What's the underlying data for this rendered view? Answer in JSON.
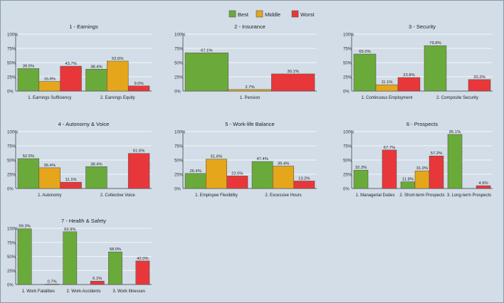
{
  "legend": [
    {
      "name": "Best",
      "color": "#6aaa3a"
    },
    {
      "name": "Middle",
      "color": "#e5a61b"
    },
    {
      "name": "Worst",
      "color": "#e8373a"
    }
  ],
  "colors": {
    "background": "#d2dde7",
    "gridline": "#ffffff",
    "frame": "#8a98a6"
  },
  "chart_data": [
    {
      "type": "bar",
      "title": "1 - Earnings",
      "categories": [
        "1. Earnings Sufficiency",
        "2. Earnings Equity"
      ],
      "series": [
        {
          "name": "Best",
          "values": [
            39.5,
            38.4
          ],
          "labels": [
            "39.5%",
            "38.4%"
          ]
        },
        {
          "name": "Middle",
          "values": [
            16.8,
            52.6
          ],
          "labels": [
            "16.8%",
            "52.6%"
          ]
        },
        {
          "name": "Worst",
          "values": [
            43.7,
            9.0
          ],
          "labels": [
            "43.7%",
            "9.0%"
          ]
        }
      ],
      "yticks": [
        "0%",
        "25%",
        "50%",
        "75%",
        "100%"
      ],
      "ylim": [
        0,
        100
      ]
    },
    {
      "type": "bar",
      "title": "2 - Insurance",
      "categories": [
        "1. Pension"
      ],
      "series": [
        {
          "name": "Best",
          "values": [
            67.1
          ],
          "labels": [
            "67.1%"
          ]
        },
        {
          "name": "Middle",
          "values": [
            2.7
          ],
          "labels": [
            "2.7%"
          ]
        },
        {
          "name": "Worst",
          "values": [
            30.1
          ],
          "labels": [
            "30.1%"
          ]
        }
      ],
      "yticks": [
        "0%",
        "25%",
        "50%",
        "75%",
        "100%"
      ],
      "ylim": [
        0,
        100
      ]
    },
    {
      "type": "bar",
      "title": "3 - Security",
      "categories": [
        "1. Continuous Employment",
        "2. Composite Security"
      ],
      "series": [
        {
          "name": "Best",
          "values": [
            65.0,
            79.8
          ],
          "labels": [
            "65.0%",
            "79.8%"
          ]
        },
        {
          "name": "Middle",
          "values": [
            11.1,
            null
          ],
          "labels": [
            "11.1%",
            ""
          ]
        },
        {
          "name": "Worst",
          "values": [
            23.8,
            20.2
          ],
          "labels": [
            "23.8%",
            "20.2%"
          ]
        }
      ],
      "yticks": [
        "0%",
        "25%",
        "50%",
        "75%",
        "100%"
      ],
      "ylim": [
        0,
        100
      ]
    },
    {
      "type": "bar",
      "title": "4 - Autonomy & Voice",
      "categories": [
        "1. Autonomy",
        "2. Collective Voice"
      ],
      "series": [
        {
          "name": "Best",
          "values": [
            52.5,
            38.4
          ],
          "labels": [
            "52.5%",
            "38.4%"
          ]
        },
        {
          "name": "Middle",
          "values": [
            36.4,
            null
          ],
          "labels": [
            "36.4%",
            ""
          ]
        },
        {
          "name": "Worst",
          "values": [
            11.1,
            61.6
          ],
          "labels": [
            "11.1%",
            "61.6%"
          ]
        }
      ],
      "yticks": [
        "0%",
        "25%",
        "50%",
        "75%",
        "100%"
      ],
      "ylim": [
        0,
        100
      ]
    },
    {
      "type": "bar",
      "title": "5 - Work-life Balance",
      "categories": [
        "1. Employee Flexibility",
        "2. Excessive Hours"
      ],
      "series": [
        {
          "name": "Best",
          "values": [
            26.4,
            47.4
          ],
          "labels": [
            "26.4%",
            "47.4%"
          ]
        },
        {
          "name": "Middle",
          "values": [
            51.6,
            39.4
          ],
          "labels": [
            "51.6%",
            "39.4%"
          ]
        },
        {
          "name": "Worst",
          "values": [
            22.0,
            13.2
          ],
          "labels": [
            "22.0%",
            "13.2%"
          ]
        }
      ],
      "yticks": [
        "0%",
        "25%",
        "50%",
        "75%",
        "100%"
      ],
      "ylim": [
        0,
        100
      ]
    },
    {
      "type": "bar",
      "title": "6 - Prospects",
      "categories": [
        "1. Managerial Duties",
        "2. Short-term Prospects",
        "3. Long-term Prospects"
      ],
      "series": [
        {
          "name": "Best",
          "values": [
            32.3,
            11.8,
            95.1
          ],
          "labels": [
            "32.3%",
            "11.8%",
            "95.1%"
          ]
        },
        {
          "name": "Middle",
          "values": [
            null,
            31.0,
            null
          ],
          "labels": [
            "",
            "31.0%",
            ""
          ]
        },
        {
          "name": "Worst",
          "values": [
            67.7,
            57.2,
            4.9
          ],
          "labels": [
            "67.7%",
            "57.2%",
            "4.9%"
          ]
        }
      ],
      "yticks": [
        "0%",
        "25%",
        "50%",
        "75%",
        "100%"
      ],
      "ylim": [
        0,
        100
      ]
    },
    {
      "type": "bar",
      "title": "7 - Health & Safety",
      "categories": [
        "1. Work Fatalities",
        "2. Work Accidents",
        "3. Work Illnesses"
      ],
      "series": [
        {
          "name": "Best",
          "values": [
            99.3,
            93.9,
            58.0
          ],
          "labels": [
            "99.3%",
            "93.9%",
            "58.0%"
          ]
        },
        {
          "name": "Middle",
          "values": [
            null,
            null,
            null
          ],
          "labels": [
            "",
            "",
            ""
          ]
        },
        {
          "name": "Worst",
          "values": [
            0.7,
            6.1,
            42.0
          ],
          "labels": [
            "0.7%",
            "6.1%",
            "42.0%"
          ]
        }
      ],
      "yticks": [
        "0%",
        "25%",
        "50%",
        "75%",
        "100%"
      ],
      "ylim": [
        0,
        100
      ]
    }
  ]
}
